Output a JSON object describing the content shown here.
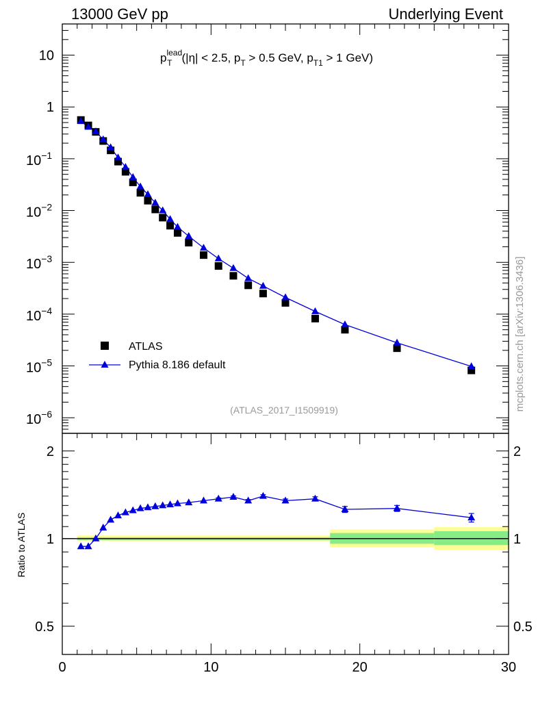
{
  "header": {
    "left": "13000 GeV pp",
    "right": "Underlying Event"
  },
  "side_label": "mcplots.cern.ch [arXiv:1306.3436]",
  "analysis_tag": "(ATLAS_2017_I1509919)",
  "chart_data": [
    {
      "panel": "main",
      "type": "scatter",
      "title_parts": {
        "p": "p",
        "sup": "lead",
        "sub": "T",
        "cut1": "(|η| < 2.5, p",
        "cut1_sub": "T",
        "cut2": " > 0.5 GeV, p",
        "cut2_sub": "T1",
        "cut3": " > 1 GeV)"
      },
      "y_scale": "log",
      "xlim": [
        0,
        30
      ],
      "ylim": [
        5e-07,
        40
      ],
      "y_ticks": [
        {
          "value": 10,
          "label": "10"
        },
        {
          "value": 1,
          "label": "1"
        },
        {
          "value": 0.1,
          "base": "10",
          "exp": "−1"
        },
        {
          "value": 0.01,
          "base": "10",
          "exp": "−2"
        },
        {
          "value": 0.001,
          "base": "10",
          "exp": "−3"
        },
        {
          "value": 0.0001,
          "base": "10",
          "exp": "−4"
        },
        {
          "value": 1e-05,
          "base": "10",
          "exp": "−5"
        },
        {
          "value": 1e-06,
          "base": "10",
          "exp": "−6"
        }
      ],
      "legend": [
        {
          "name": "ATLAS",
          "marker": "square",
          "color": "#000000"
        },
        {
          "name": "Pythia 8.186 default",
          "marker": "triangle",
          "color": "#0000dd"
        }
      ],
      "series": [
        {
          "name": "ATLAS",
          "x": [
            1.25,
            1.75,
            2.25,
            2.75,
            3.25,
            3.75,
            4.25,
            4.75,
            5.25,
            5.75,
            6.25,
            6.75,
            7.25,
            7.75,
            8.5,
            9.5,
            10.5,
            11.5,
            12.5,
            13.5,
            15,
            17,
            19,
            22.5,
            27.5
          ],
          "y": [
            0.56,
            0.44,
            0.33,
            0.22,
            0.145,
            0.088,
            0.056,
            0.035,
            0.022,
            0.0155,
            0.0105,
            0.0073,
            0.0051,
            0.0037,
            0.0024,
            0.00138,
            0.00085,
            0.00055,
            0.00036,
            0.00025,
            0.000165,
            8.2e-05,
            5e-05,
            2.2e-05,
            8.2e-06
          ]
        },
        {
          "name": "Pythia 8.186 default",
          "x": [
            1.25,
            1.75,
            2.25,
            2.75,
            3.25,
            3.75,
            4.25,
            4.75,
            5.25,
            5.75,
            6.25,
            6.75,
            7.25,
            7.75,
            8.5,
            9.5,
            10.5,
            11.5,
            12.5,
            13.5,
            15,
            17,
            19,
            22.5,
            27.5
          ],
          "y": [
            0.53,
            0.41,
            0.335,
            0.235,
            0.165,
            0.105,
            0.069,
            0.044,
            0.029,
            0.0205,
            0.0141,
            0.01,
            0.0068,
            0.0048,
            0.0032,
            0.0019,
            0.00118,
            0.00077,
            0.00049,
            0.00035,
            0.00021,
            0.000113,
            6.3e-05,
            2.8e-05,
            9.8e-06
          ]
        }
      ]
    },
    {
      "panel": "ratio",
      "type": "line",
      "ylabel": "Ratio to ATLAS",
      "xlim": [
        0,
        30
      ],
      "ylim": [
        0.4,
        2.3
      ],
      "y_scale": "log",
      "y_ticks": [
        {
          "value": 2,
          "label": "2"
        },
        {
          "value": 1,
          "label": "1"
        },
        {
          "value": 0.5,
          "label": "0.5"
        }
      ],
      "x_ticks": [
        {
          "value": 0,
          "label": "0"
        },
        {
          "value": 10,
          "label": "10"
        },
        {
          "value": 20,
          "label": "20"
        },
        {
          "value": 30,
          "label": "30"
        }
      ],
      "bands": [
        {
          "x0": 1,
          "x1": 18,
          "yellow_lo": 0.98,
          "yellow_hi": 1.025,
          "green_lo": 0.99,
          "green_hi": 1.01
        },
        {
          "x0": 18,
          "x1": 25,
          "yellow_lo": 0.935,
          "yellow_hi": 1.075,
          "green_lo": 0.96,
          "green_hi": 1.045
        },
        {
          "x0": 25,
          "x1": 30,
          "yellow_lo": 0.915,
          "yellow_hi": 1.095,
          "green_lo": 0.95,
          "green_hi": 1.06
        }
      ],
      "series": [
        {
          "name": "Pythia 8.186 default",
          "x": [
            1.25,
            1.75,
            2.25,
            2.75,
            3.25,
            3.75,
            4.25,
            4.75,
            5.25,
            5.75,
            6.25,
            6.75,
            7.25,
            7.75,
            8.5,
            9.5,
            10.5,
            11.5,
            12.5,
            13.5,
            15,
            17,
            19,
            22.5,
            27.5
          ],
          "y": [
            0.94,
            0.94,
            1.0,
            1.09,
            1.16,
            1.2,
            1.23,
            1.25,
            1.27,
            1.28,
            1.29,
            1.3,
            1.31,
            1.32,
            1.33,
            1.35,
            1.37,
            1.39,
            1.35,
            1.4,
            1.35,
            1.37,
            1.26,
            1.27,
            1.18
          ],
          "err": [
            0.005,
            0.005,
            0.005,
            0.005,
            0.005,
            0.005,
            0.005,
            0.005,
            0.005,
            0.005,
            0.005,
            0.005,
            0.006,
            0.006,
            0.007,
            0.008,
            0.01,
            0.012,
            0.012,
            0.015,
            0.018,
            0.022,
            0.03,
            0.03,
            0.04
          ]
        }
      ]
    }
  ],
  "colors": {
    "atlas": "#000000",
    "mc": "#0000dd",
    "band_yellow": "#fdfd96",
    "band_green": "#86ec86"
  }
}
